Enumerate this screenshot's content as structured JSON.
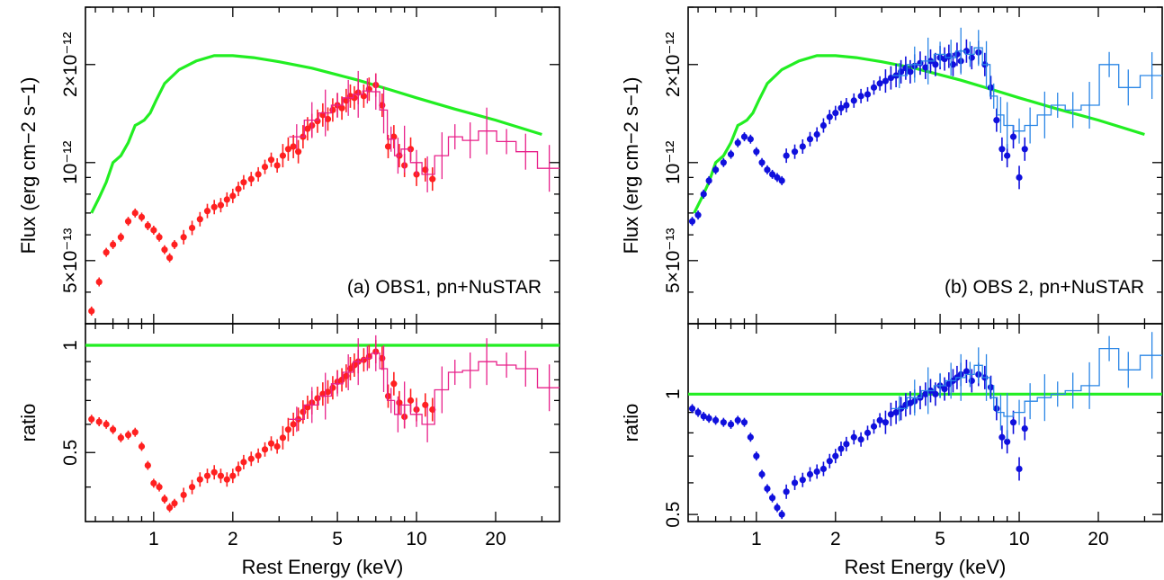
{
  "colors": {
    "model": "#22ee22",
    "obs1_pn": "#ff2020",
    "obs1_nustar": "#e8208a",
    "obs2_pn": "#1010dd",
    "obs2_nustar": "#2a86e6"
  },
  "chart_data": [
    {
      "type": "scatter",
      "panel": "(a) OBS1, pn+NuSTAR",
      "xlabel": "Rest Energy (keV)",
      "xscale": "log",
      "xlim": [
        0.55,
        35
      ],
      "xticks": [
        "1",
        "2",
        "5",
        "10",
        "20"
      ],
      "top": {
        "ylabel": "Flux (erg cm−2 s−1)",
        "yscale": "log",
        "ylim": [
          3.2e-13,
          3e-12
        ],
        "yticks": [
          "5×10⁻¹³",
          "10⁻¹²",
          "2×10⁻¹²"
        ],
        "series": [
          {
            "role": "model",
            "x": [
              0.58,
              0.62,
              0.66,
              0.7,
              0.75,
              0.8,
              0.85,
              0.88,
              0.92,
              0.97,
              1.02,
              1.1,
              1.25,
              1.45,
              1.7,
              2.0,
              2.4,
              3.0,
              4.0,
              5.0,
              6.0,
              8.0,
              10.0,
              14.0,
              20.0,
              30.0
            ],
            "values": [
              7e-13,
              7.8e-13,
              8.7e-13,
              1e-12,
              1.05e-12,
              1.15e-12,
              1.3e-12,
              1.32e-12,
              1.35e-12,
              1.42e-12,
              1.55e-12,
              1.75e-12,
              1.93e-12,
              2.05e-12,
              2.13e-12,
              2.13e-12,
              2.1e-12,
              2.04e-12,
              1.95e-12,
              1.86e-12,
              1.79e-12,
              1.67e-12,
              1.58e-12,
              1.46e-12,
              1.35e-12,
              1.22e-12
            ]
          },
          {
            "role": "pn",
            "x": [
              0.58,
              0.62,
              0.66,
              0.7,
              0.75,
              0.8,
              0.85,
              0.9,
              0.95,
              1.0,
              1.05,
              1.1,
              1.15,
              1.2,
              1.3,
              1.4,
              1.5,
              1.6,
              1.7,
              1.8,
              1.9,
              2.0,
              2.1,
              2.2,
              2.35,
              2.5,
              2.65,
              2.8,
              2.95,
              3.1,
              3.25,
              3.4,
              3.55,
              3.7,
              3.85,
              4.0,
              4.2,
              4.4,
              4.6,
              4.8,
              5.0,
              5.2,
              5.4,
              5.6,
              5.8,
              6.0,
              6.3,
              6.6,
              7.0,
              7.4,
              7.8,
              8.2,
              8.6,
              9.0,
              9.5,
              10.0,
              10.8,
              11.5
            ],
            "values": [
              3.5e-13,
              4.3e-13,
              5.3e-13,
              5.6e-13,
              5.9e-13,
              6.6e-13,
              7e-13,
              6.8e-13,
              6.4e-13,
              6.2e-13,
              5.9e-13,
              5.4e-13,
              5.1e-13,
              5.6e-13,
              5.9e-13,
              6.3e-13,
              6.7e-13,
              7.1e-13,
              7.3e-13,
              7.4e-13,
              7.7e-13,
              7.9e-13,
              8.3e-13,
              8.7e-13,
              8.9e-13,
              9.2e-13,
              9.7e-13,
              1.02e-12,
              9.8e-13,
              1.05e-12,
              1.1e-12,
              1.12e-12,
              1.08e-12,
              1.2e-12,
              1.27e-12,
              1.3e-12,
              1.34e-12,
              1.4e-12,
              1.36e-12,
              1.45e-12,
              1.5e-12,
              1.47e-12,
              1.55e-12,
              1.6e-12,
              1.58e-12,
              1.64e-12,
              1.6e-12,
              1.68e-12,
              1.73e-12,
              1.5e-12,
              1.12e-12,
              1.2e-12,
              1.05e-12,
              9.8e-13,
              1.1e-12,
              9.2e-13,
              9.5e-13,
              8.9e-13
            ]
          },
          {
            "role": "nustar",
            "x": [
              3.5,
              4.0,
              4.5,
              5.0,
              5.5,
              6.0,
              6.5,
              7.0,
              7.5,
              8.0,
              8.5,
              9.0,
              10.0,
              11.0,
              12.5,
              14.0,
              16.0,
              18.5,
              22.0,
              26.0,
              32.0
            ],
            "values": [
              1.2e-12,
              1.35e-12,
              1.42e-12,
              1.5e-12,
              1.58e-12,
              1.62e-12,
              1.66e-12,
              1.65e-12,
              1.45e-12,
              1.18e-12,
              1.05e-12,
              1.1e-12,
              1e-12,
              9.2e-13,
              1.05e-12,
              1.2e-12,
              1.17e-12,
              1.25e-12,
              1.16e-12,
              1.08e-12,
              9.6e-13
            ]
          }
        ]
      },
      "bottom": {
        "ylabel": "ratio",
        "yscale": "log",
        "ylim": [
          0.32,
          1.15
        ],
        "yticks": [
          "0.5",
          "1"
        ],
        "series": [
          {
            "role": "model",
            "x": [
              0.55,
              35
            ],
            "values": [
              1,
              1
            ]
          },
          {
            "role": "pn",
            "x": [
              0.58,
              0.62,
              0.66,
              0.7,
              0.75,
              0.8,
              0.85,
              0.9,
              0.95,
              1.0,
              1.05,
              1.1,
              1.15,
              1.2,
              1.3,
              1.4,
              1.5,
              1.6,
              1.7,
              1.8,
              1.9,
              2.0,
              2.1,
              2.2,
              2.35,
              2.5,
              2.65,
              2.8,
              2.95,
              3.1,
              3.25,
              3.4,
              3.55,
              3.7,
              3.85,
              4.0,
              4.2,
              4.4,
              4.6,
              4.8,
              5.0,
              5.2,
              5.4,
              5.6,
              5.8,
              6.0,
              6.3,
              6.6,
              7.0,
              7.4,
              7.8,
              8.2,
              8.6,
              9.0,
              9.5,
              10.0,
              10.8,
              11.5
            ],
            "values": [
              0.62,
              0.61,
              0.6,
              0.58,
              0.55,
              0.56,
              0.57,
              0.52,
              0.46,
              0.41,
              0.4,
              0.37,
              0.35,
              0.36,
              0.38,
              0.4,
              0.42,
              0.43,
              0.44,
              0.43,
              0.42,
              0.43,
              0.45,
              0.47,
              0.48,
              0.49,
              0.51,
              0.53,
              0.52,
              0.55,
              0.58,
              0.6,
              0.62,
              0.65,
              0.67,
              0.69,
              0.71,
              0.73,
              0.74,
              0.76,
              0.79,
              0.8,
              0.82,
              0.86,
              0.88,
              0.9,
              0.91,
              0.93,
              0.96,
              0.92,
              0.72,
              0.78,
              0.69,
              0.63,
              0.7,
              0.66,
              0.68,
              0.66
            ]
          },
          {
            "role": "nustar",
            "x": [
              3.5,
              4.0,
              4.5,
              5.0,
              5.5,
              6.0,
              6.5,
              7.0,
              7.5,
              8.0,
              8.5,
              9.0,
              10.0,
              11.0,
              12.5,
              14.0,
              16.0,
              18.5,
              22.0,
              26.0,
              32.0
            ],
            "values": [
              0.62,
              0.68,
              0.72,
              0.78,
              0.84,
              0.9,
              0.92,
              0.95,
              0.86,
              0.7,
              0.64,
              0.68,
              0.64,
              0.6,
              0.75,
              0.84,
              0.85,
              0.9,
              0.88,
              0.86,
              0.76
            ]
          }
        ]
      }
    },
    {
      "type": "scatter",
      "panel": "(b) OBS 2, pn+NuSTAR",
      "xlabel": "Rest Energy (keV)",
      "xscale": "log",
      "xlim": [
        0.55,
        35
      ],
      "xticks": [
        "1",
        "2",
        "5",
        "10",
        "20"
      ],
      "top": {
        "ylabel": "Flux (erg cm−2 s−1)",
        "yscale": "log",
        "ylim": [
          3.2e-13,
          3e-12
        ],
        "yticks": [
          "5×10⁻¹³",
          "10⁻¹²",
          "2×10⁻¹²"
        ],
        "series": [
          {
            "role": "model",
            "x": [
              0.58,
              0.62,
              0.66,
              0.7,
              0.75,
              0.8,
              0.85,
              0.88,
              0.92,
              0.97,
              1.02,
              1.1,
              1.25,
              1.45,
              1.7,
              2.0,
              2.4,
              3.0,
              4.0,
              5.0,
              6.0,
              8.0,
              10.0,
              14.0,
              20.0,
              30.0
            ],
            "values": [
              7e-13,
              7.8e-13,
              8.7e-13,
              1e-12,
              1.05e-12,
              1.15e-12,
              1.3e-12,
              1.32e-12,
              1.35e-12,
              1.42e-12,
              1.55e-12,
              1.75e-12,
              1.93e-12,
              2.05e-12,
              2.13e-12,
              2.13e-12,
              2.1e-12,
              2.04e-12,
              1.95e-12,
              1.86e-12,
              1.79e-12,
              1.67e-12,
              1.58e-12,
              1.46e-12,
              1.35e-12,
              1.22e-12
            ]
          },
          {
            "role": "pn",
            "x": [
              0.57,
              0.6,
              0.63,
              0.66,
              0.7,
              0.75,
              0.8,
              0.85,
              0.9,
              0.95,
              1.0,
              1.05,
              1.1,
              1.15,
              1.2,
              1.25,
              1.3,
              1.4,
              1.5,
              1.6,
              1.7,
              1.8,
              1.9,
              2.0,
              2.1,
              2.2,
              2.35,
              2.5,
              2.65,
              2.8,
              2.95,
              3.1,
              3.25,
              3.4,
              3.55,
              3.7,
              3.85,
              4.0,
              4.2,
              4.4,
              4.6,
              4.8,
              5.0,
              5.2,
              5.4,
              5.6,
              5.8,
              6.0,
              6.3,
              6.6,
              7.0,
              7.4,
              7.8,
              8.2,
              8.6,
              9.0,
              9.5,
              10.0,
              10.5
            ],
            "values": [
              6.6e-13,
              6.9e-13,
              8e-13,
              8.8e-13,
              9.5e-13,
              1e-12,
              1.06e-12,
              1.15e-12,
              1.2e-12,
              1.18e-12,
              1.08e-12,
              1e-12,
              9.5e-13,
              9.2e-13,
              9e-13,
              8.8e-13,
              1.05e-12,
              1.08e-12,
              1.12e-12,
              1.18e-12,
              1.22e-12,
              1.3e-12,
              1.38e-12,
              1.42e-12,
              1.47e-12,
              1.5e-12,
              1.55e-12,
              1.6e-12,
              1.62e-12,
              1.7e-12,
              1.75e-12,
              1.78e-12,
              1.82e-12,
              1.85e-12,
              1.9e-12,
              1.95e-12,
              1.9e-12,
              1.98e-12,
              2.02e-12,
              1.96e-12,
              2.05e-12,
              2e-12,
              2.1e-12,
              2.08e-12,
              2.12e-12,
              2e-12,
              2.15e-12,
              2.05e-12,
              2.2e-12,
              2.1e-12,
              2.18e-12,
              2e-12,
              1.7e-12,
              1.35e-12,
              1.1e-12,
              1.05e-12,
              1.2e-12,
              9e-13,
              1.1e-12
            ]
          },
          {
            "role": "nustar",
            "x": [
              3.5,
              4.0,
              4.5,
              5.0,
              5.5,
              6.0,
              6.5,
              7.0,
              7.5,
              8.0,
              8.5,
              9.0,
              10.0,
              11.0,
              12.5,
              14.0,
              16.0,
              18.5,
              22.0,
              26.0,
              32.0
            ],
            "values": [
              1.85e-12,
              2e-12,
              2.05e-12,
              2.15e-12,
              2.1e-12,
              2.2e-12,
              2.15e-12,
              2.25e-12,
              2e-12,
              1.6e-12,
              1.4e-12,
              1.3e-12,
              1.25e-12,
              1.3e-12,
              1.4e-12,
              1.5e-12,
              1.45e-12,
              1.5e-12,
              2e-12,
              1.7e-12,
              1.85e-12
            ]
          }
        ]
      },
      "bottom": {
        "ylabel": "ratio",
        "yscale": "log",
        "ylim": [
          0.48,
          1.5
        ],
        "yticks": [
          "0.5",
          "1"
        ],
        "series": [
          {
            "role": "model",
            "x": [
              0.55,
              35
            ],
            "values": [
              1,
              1
            ]
          },
          {
            "role": "pn",
            "x": [
              0.57,
              0.6,
              0.63,
              0.66,
              0.7,
              0.75,
              0.8,
              0.85,
              0.9,
              0.95,
              1.0,
              1.05,
              1.1,
              1.15,
              1.2,
              1.25,
              1.3,
              1.4,
              1.5,
              1.6,
              1.7,
              1.8,
              1.9,
              2.0,
              2.1,
              2.2,
              2.35,
              2.5,
              2.65,
              2.8,
              2.95,
              3.1,
              3.25,
              3.4,
              3.55,
              3.7,
              3.85,
              4.0,
              4.2,
              4.4,
              4.6,
              4.8,
              5.0,
              5.2,
              5.4,
              5.6,
              5.8,
              6.0,
              6.3,
              6.6,
              7.0,
              7.4,
              7.8,
              8.2,
              8.6,
              9.0,
              9.5,
              10.0,
              10.5
            ],
            "values": [
              0.92,
              0.9,
              0.88,
              0.87,
              0.86,
              0.85,
              0.84,
              0.86,
              0.85,
              0.78,
              0.7,
              0.63,
              0.58,
              0.55,
              0.52,
              0.5,
              0.57,
              0.6,
              0.61,
              0.63,
              0.64,
              0.65,
              0.68,
              0.7,
              0.73,
              0.75,
              0.78,
              0.77,
              0.8,
              0.83,
              0.86,
              0.85,
              0.89,
              0.9,
              0.92,
              0.94,
              0.95,
              0.96,
              0.98,
              1.0,
              1.02,
              1.0,
              1.05,
              1.03,
              1.06,
              1.08,
              1.1,
              1.12,
              1.14,
              1.08,
              1.12,
              1.1,
              1.04,
              0.92,
              0.78,
              0.76,
              0.85,
              0.65,
              0.82
            ]
          },
          {
            "role": "nustar",
            "x": [
              3.5,
              4.0,
              4.5,
              5.0,
              5.5,
              6.0,
              6.5,
              7.0,
              7.5,
              8.0,
              8.5,
              9.0,
              10.0,
              11.0,
              12.5,
              14.0,
              16.0,
              18.5,
              22.0,
              26.0,
              32.0
            ],
            "values": [
              0.92,
              0.98,
              1.02,
              1.05,
              1.08,
              1.1,
              1.12,
              1.18,
              1.1,
              0.98,
              0.9,
              0.88,
              0.9,
              0.96,
              0.98,
              1.0,
              1.02,
              1.05,
              1.3,
              1.15,
              1.25
            ]
          }
        ]
      }
    }
  ]
}
